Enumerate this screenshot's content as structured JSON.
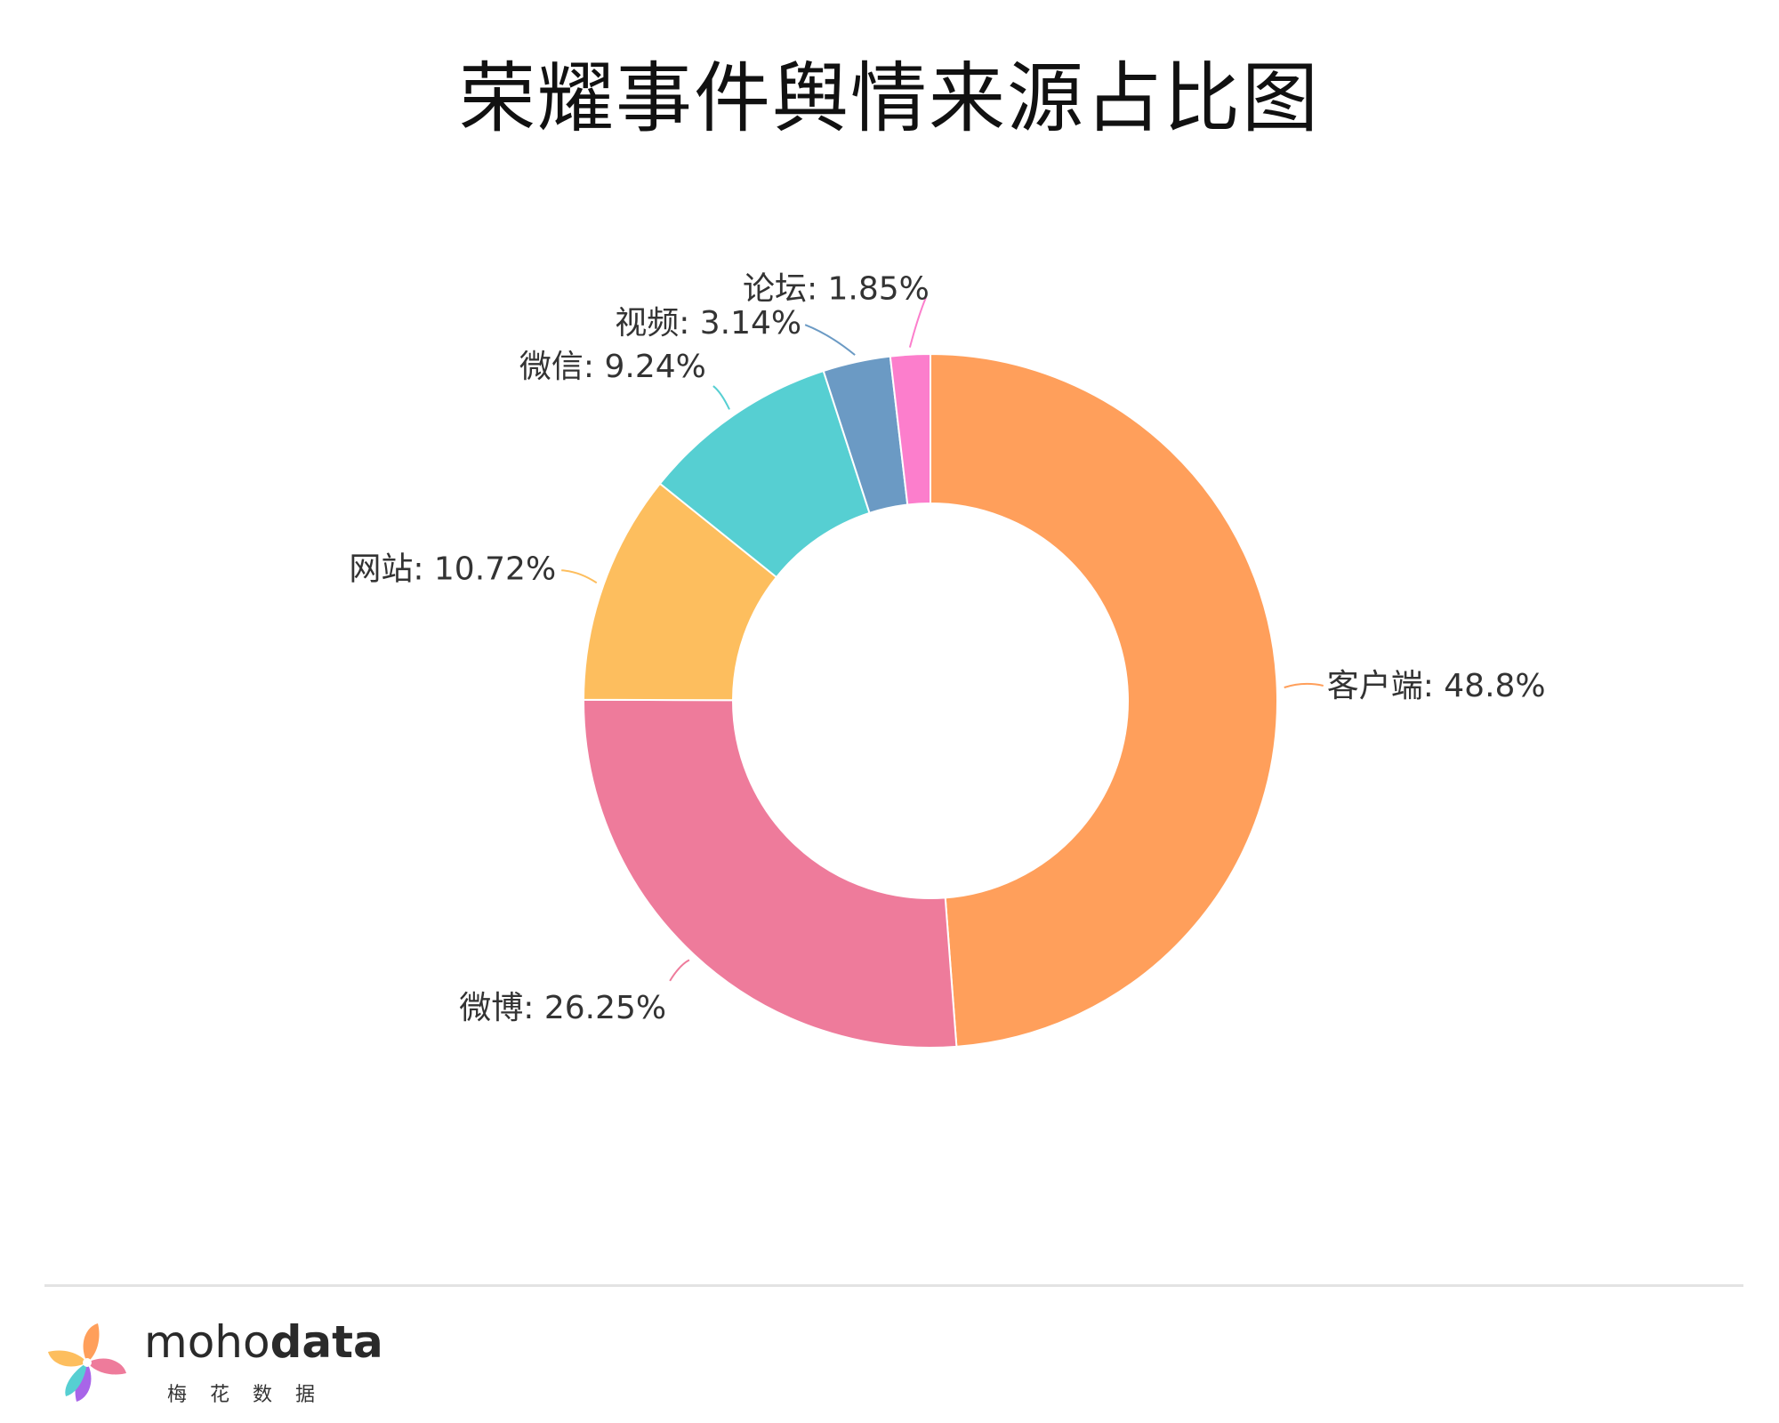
{
  "title": "荣耀事件舆情来源占比图",
  "chart_data": {
    "type": "pie",
    "donut": true,
    "title": "荣耀事件舆情来源占比图",
    "slices": [
      {
        "label": "客户端",
        "value": 48.8,
        "display": "客户端: 48.8%",
        "color": "#FF9F5B"
      },
      {
        "label": "微博",
        "value": 26.25,
        "display": "微博: 26.25%",
        "color": "#EE7B9B"
      },
      {
        "label": "网站",
        "value": 10.72,
        "display": "网站: 10.72%",
        "color": "#FDBE5E"
      },
      {
        "label": "微信",
        "value": 9.24,
        "display": "微信: 9.24%",
        "color": "#56CFD2"
      },
      {
        "label": "视频",
        "value": 3.14,
        "display": "视频: 3.14%",
        "color": "#6B9AC4"
      },
      {
        "label": "论坛",
        "value": 1.85,
        "display": "论坛: 1.85%",
        "color": "#FC7ECC"
      }
    ]
  },
  "footer": {
    "brand_light": "moho",
    "brand_bold": "data",
    "brand_sub": "梅花数据",
    "logo_icon": "pinwheel-logo-icon"
  }
}
